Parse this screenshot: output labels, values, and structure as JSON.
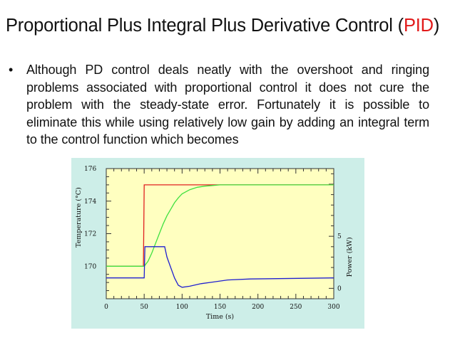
{
  "slide": {
    "title_main": "Proportional Plus Integral Plus Derivative Control (",
    "title_accent": "PID",
    "title_close": ")",
    "bullet_glyph": "•",
    "bullet_text": "Although PD control deals neatly with the overshoot and ringing problems associated with proportional control it does not cure the problem with the steady-state error. Fortunately it is possible to eliminate this while using relatively low gain by adding an integral term to the control function which becomes"
  },
  "colors": {
    "accent": "#e21a1a",
    "plot_bg": "#ffffc0",
    "figure_bg": "#cdeee8",
    "setpoint": "#e02020",
    "temperature": "#40e040",
    "power": "#2020d0"
  },
  "chart_data": {
    "type": "line",
    "title": "",
    "xlabel": "Time (s)",
    "ylabel": "Temperature (°C)",
    "y2label": "Power (kW)",
    "xlim": [
      0,
      300
    ],
    "ylim": [
      168,
      176
    ],
    "y2lim": [
      -1,
      11.5
    ],
    "x_ticks": [
      0,
      50,
      100,
      150,
      200,
      250,
      300
    ],
    "y_ticks": [
      170,
      172,
      174,
      176
    ],
    "y2_ticks": [
      0,
      5
    ],
    "grid": false,
    "series": [
      {
        "axis": "left",
        "color": "#e02020",
        "points": [
          [
            0,
            170
          ],
          [
            49,
            170
          ],
          [
            50,
            175
          ],
          [
            300,
            175
          ]
        ]
      },
      {
        "axis": "left",
        "color": "#40e040",
        "points": [
          [
            0,
            170
          ],
          [
            50,
            170
          ],
          [
            55,
            170.3
          ],
          [
            60,
            170.8
          ],
          [
            65,
            171.4
          ],
          [
            70,
            172.0
          ],
          [
            75,
            172.6
          ],
          [
            80,
            173.1
          ],
          [
            85,
            173.5
          ],
          [
            90,
            173.9
          ],
          [
            95,
            174.2
          ],
          [
            100,
            174.45
          ],
          [
            110,
            174.7
          ],
          [
            120,
            174.85
          ],
          [
            130,
            174.92
          ],
          [
            140,
            174.96
          ],
          [
            150,
            175
          ],
          [
            300,
            175
          ]
        ]
      },
      {
        "axis": "right",
        "color": "#2020d0",
        "points": [
          [
            0,
            1
          ],
          [
            50,
            1
          ],
          [
            51,
            4
          ],
          [
            77,
            4
          ],
          [
            80,
            3
          ],
          [
            85,
            2
          ],
          [
            90,
            1
          ],
          [
            95,
            0.3
          ],
          [
            100,
            0.1
          ],
          [
            110,
            0.2
          ],
          [
            125,
            0.45
          ],
          [
            140,
            0.6
          ],
          [
            160,
            0.8
          ],
          [
            190,
            0.9
          ],
          [
            300,
            1
          ]
        ]
      }
    ]
  }
}
